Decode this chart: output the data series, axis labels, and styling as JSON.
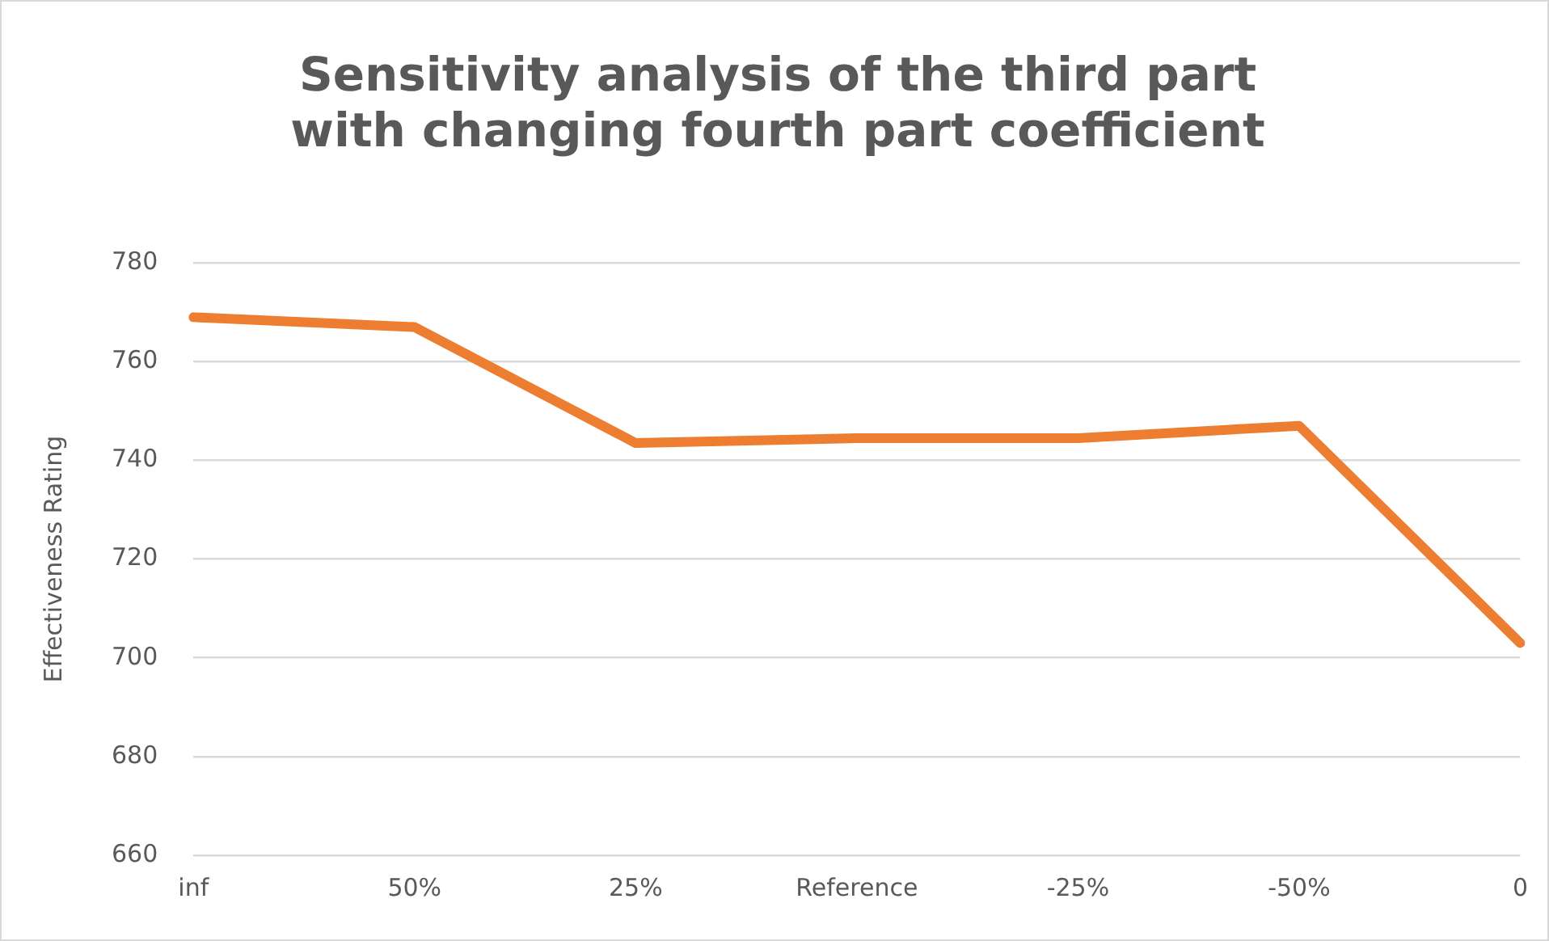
{
  "chart_data": {
    "type": "line",
    "title": [
      "Sensitivity analysis of the third part",
      "with changing fourth part coefficient"
    ],
    "ylabel": "Effectiveness Rating",
    "categories": [
      "inf",
      "50%",
      "25%",
      "Reference",
      "-25%",
      "-50%",
      "0"
    ],
    "series": [
      {
        "color": "#ed7d31",
        "values": [
          769,
          767,
          743.5,
          744.5,
          744.5,
          747,
          703
        ]
      }
    ],
    "ylim": [
      660,
      780
    ],
    "yticks": [
      660,
      680,
      700,
      720,
      740,
      760,
      780
    ],
    "grid": "y",
    "legend": false,
    "marker": "none",
    "line_style": "solid"
  }
}
